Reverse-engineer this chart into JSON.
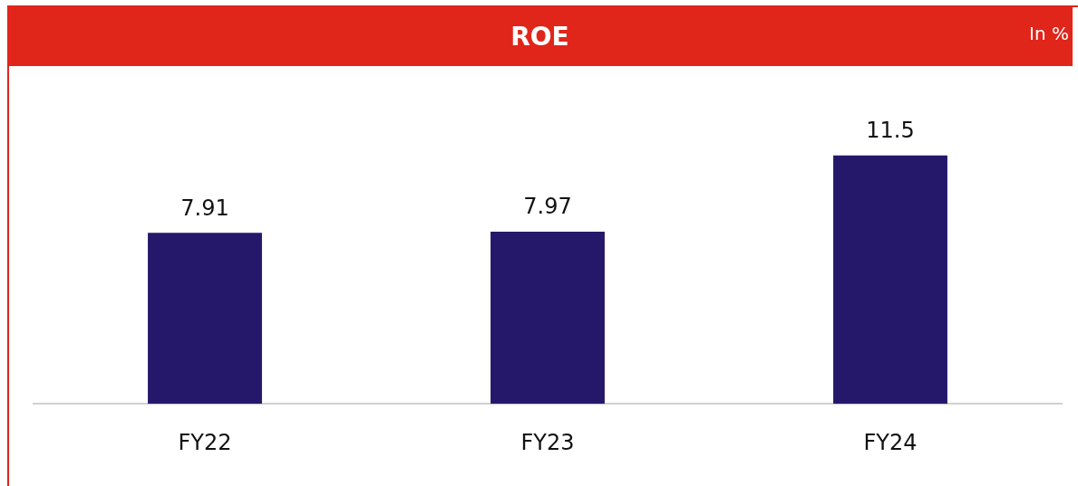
{
  "chart_data": {
    "type": "bar",
    "title": "ROE",
    "subtitle": "In %",
    "categories": [
      "FY22",
      "FY23",
      "FY24"
    ],
    "values": [
      7.91,
      7.97,
      11.5
    ],
    "color": "#25186a",
    "data_labels": true
  }
}
